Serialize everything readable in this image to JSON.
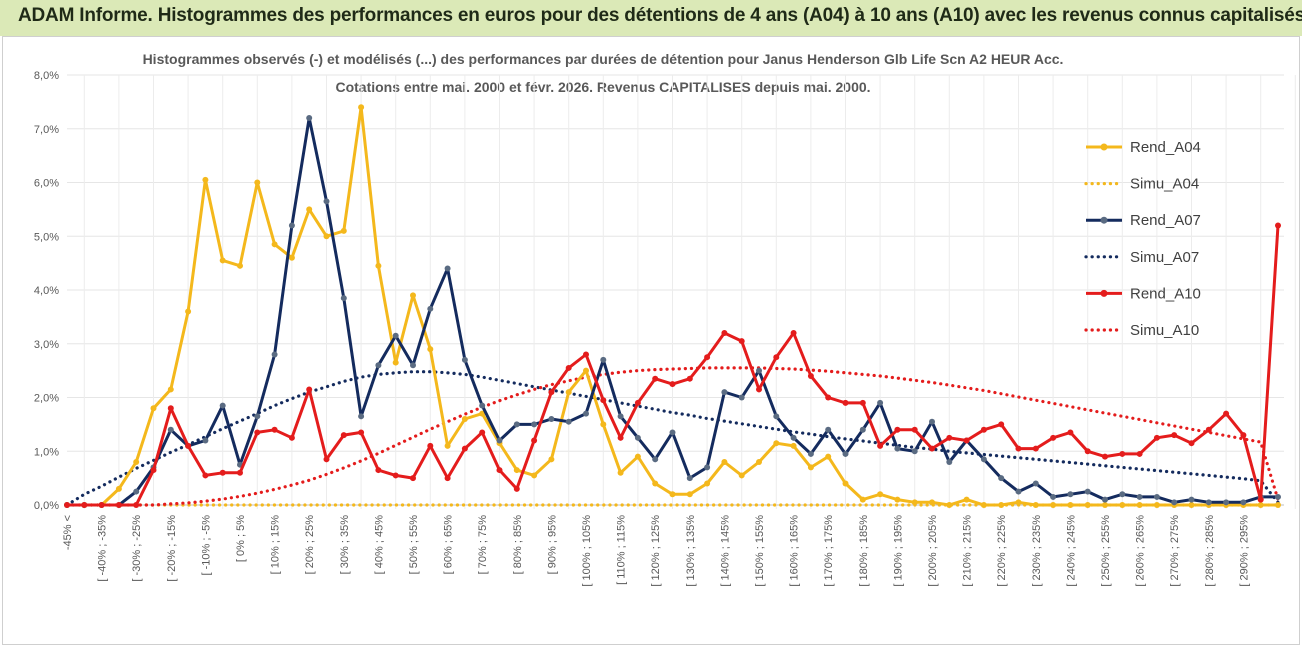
{
  "banner": {
    "title": "ADAM Informe. Histogrammes des performances en euros pour des détentions de 4 ans (A04) à 10 ans (A10) avec les revenus connus capitalisés"
  },
  "chart_data": {
    "type": "line",
    "title_line1": "Histogrammes observés (-) et modélisés (...) des performances par durées de détention pour Janus Henderson Glb Life Scn A2 HEUR Acc.",
    "title_line2": "Cotations entre mai. 2000 et févr. 2026. Revenus CAPITALISES depuis mai. 2000.",
    "ylim": [
      0,
      8
    ],
    "yticks": [
      "0,0%",
      "1,0%",
      "2,0%",
      "3,0%",
      "4,0%",
      "5,0%",
      "6,0%",
      "7,0%",
      "8,0%"
    ],
    "categories": [
      "-45% <",
      "[ -45% ; -40% [",
      "[ -40% ; -35% [",
      "[ -35% ; -30% [",
      "[ -30% ; -25% [",
      "[ -25% ; -20% [",
      "[ -20% ; -15% [",
      "[ -15% ; -10% [",
      "[ -10% ; -5% [",
      "[ -5% ; 0% [",
      "[ 0% ; 5% [",
      "[ 5% ; 10% [",
      "[ 10% ; 15% [",
      "[ 15% ; 20% [",
      "[ 20% ; 25% [",
      "[ 25% ; 30% [",
      "[ 30% ; 35% [",
      "[ 35% ; 40% [",
      "[ 40% ; 45% [",
      "[ 45% ; 50% [",
      "[ 50% ; 55% [",
      "[ 55% ; 60% [",
      "[ 60% ; 65% [",
      "[ 65% ; 70% [",
      "[ 70% ; 75% [",
      "[ 75% ; 80% [",
      "[ 80% ; 85% [",
      "[ 85% ; 90% [",
      "[ 90% ; 95% [",
      "[ 95% ; 100% [",
      "[ 100% ; 105% [",
      "[ 105% ; 110% [",
      "[ 110% ; 115% [",
      "[ 115% ; 120% [",
      "[ 120% ; 125% [",
      "[ 125% ; 130% [",
      "[ 130% ; 135% [",
      "[ 135% ; 140% [",
      "[ 140% ; 145% [",
      "[ 145% ; 150% [",
      "[ 150% ; 155% [",
      "[ 155% ; 160% [",
      "[ 160% ; 165% [",
      "[ 165% ; 170% [",
      "[ 170% ; 175% [",
      "[ 175% ; 180% [",
      "[ 180% ; 185% [",
      "[ 185% ; 190% [",
      "[ 190% ; 195% [",
      "[ 195% ; 200% [",
      "[ 200% ; 205% [",
      "[ 205% ; 210% [",
      "[ 210% ; 215% [",
      "[ 215% ; 220% [",
      "[ 220% ; 225% [",
      "[ 225% ; 230% [",
      "[ 230% ; 235% [",
      "[ 235% ; 240% [",
      "[ 240% ; 245% [",
      "[ 245% ; 250% [",
      "[ 250% ; 255% [",
      "[ 255% ; 260% [",
      "[ 260% ; 265% [",
      "[ 265% ; 270% [",
      "[ 270% ; 275% [",
      "[ 275% ; 280% [",
      "[ 280% ; 285% [",
      "[ 285% ; 290% [",
      "[ 290% ; 295% [",
      "[ 295% ; 300% [",
      "> 300%"
    ],
    "xtick_labels": [
      {
        "index": 0,
        "text": "-45% <"
      },
      {
        "index": 2,
        "text": "[ -40% ; -35%"
      },
      {
        "index": 4,
        "text": "[ -30% ; -25%"
      },
      {
        "index": 6,
        "text": "[ -20% ; -15%"
      },
      {
        "index": 8,
        "text": "[ -10% ; -5%"
      },
      {
        "index": 10,
        "text": "[ 0% ; 5%"
      },
      {
        "index": 12,
        "text": "[ 10% ; 15%"
      },
      {
        "index": 14,
        "text": "[ 20% ; 25%"
      },
      {
        "index": 16,
        "text": "[ 30% ; 35%"
      },
      {
        "index": 18,
        "text": "[ 40% ; 45%"
      },
      {
        "index": 20,
        "text": "[ 50% ; 55%"
      },
      {
        "index": 22,
        "text": "[ 60% ; 65%"
      },
      {
        "index": 24,
        "text": "[ 70% ; 75%"
      },
      {
        "index": 26,
        "text": "[ 80% ; 85%"
      },
      {
        "index": 28,
        "text": "[ 90% ; 95%"
      },
      {
        "index": 30,
        "text": "[ 100% ; 105%"
      },
      {
        "index": 32,
        "text": "[ 110% ; 115%"
      },
      {
        "index": 34,
        "text": "[ 120% ; 125%"
      },
      {
        "index": 36,
        "text": "[ 130% ; 135%"
      },
      {
        "index": 38,
        "text": "[ 140% ; 145%"
      },
      {
        "index": 40,
        "text": "[ 150% ; 155%"
      },
      {
        "index": 42,
        "text": "[ 160% ; 165%"
      },
      {
        "index": 44,
        "text": "[ 170% ; 175%"
      },
      {
        "index": 46,
        "text": "[ 180% ; 185%"
      },
      {
        "index": 48,
        "text": "[ 190% ; 195%"
      },
      {
        "index": 50,
        "text": "[ 200% ; 205%"
      },
      {
        "index": 52,
        "text": "[ 210% ; 215%"
      },
      {
        "index": 54,
        "text": "[ 220% ; 225%"
      },
      {
        "index": 56,
        "text": "[ 230% ; 235%"
      },
      {
        "index": 58,
        "text": "[ 240% ; 245%"
      },
      {
        "index": 60,
        "text": "[ 250% ; 255%"
      },
      {
        "index": 62,
        "text": "[ 260% ; 265%"
      },
      {
        "index": 64,
        "text": "[ 270% ; 275%"
      },
      {
        "index": 66,
        "text": "[ 280% ; 285%"
      },
      {
        "index": 68,
        "text": "[ 290% ; 295%"
      }
    ],
    "series": [
      {
        "name": "Rend_A04",
        "color": "#f4b81c",
        "style": "solid",
        "marker": true,
        "values": [
          0,
          0,
          0,
          0.3,
          0.8,
          1.8,
          2.15,
          3.6,
          6.05,
          4.55,
          4.45,
          6.0,
          4.85,
          4.6,
          5.5,
          5.0,
          5.1,
          7.4,
          4.45,
          2.65,
          3.9,
          2.9,
          1.1,
          1.6,
          1.7,
          1.15,
          0.65,
          0.55,
          0.85,
          2.1,
          2.5,
          1.5,
          0.6,
          0.9,
          0.4,
          0.2,
          0.2,
          0.4,
          0.8,
          0.55,
          0.8,
          1.15,
          1.1,
          0.7,
          0.9,
          0.4,
          0.1,
          0.2,
          0.1,
          0.05,
          0.05,
          0,
          0.1,
          0,
          0,
          0.05,
          0,
          0,
          0,
          0,
          0,
          0,
          0,
          0,
          0,
          0,
          0,
          0,
          0,
          0,
          0
        ]
      },
      {
        "name": "Simu_A04",
        "color": "#f4b81c",
        "style": "dotted",
        "marker": false,
        "values": [
          0,
          0,
          0,
          0,
          0,
          0,
          0,
          0,
          0,
          0,
          0,
          0,
          0,
          0,
          0,
          0,
          0,
          0,
          0,
          0,
          0,
          0,
          0,
          0,
          0,
          0,
          0,
          0,
          0,
          0,
          0,
          0,
          0,
          0,
          0,
          0,
          0,
          0,
          0,
          0,
          0,
          0,
          0,
          0,
          0,
          0,
          0,
          0,
          0,
          0,
          0,
          0,
          0,
          0,
          0,
          0,
          0,
          0,
          0,
          0,
          0,
          0,
          0,
          0,
          0,
          0,
          0,
          0,
          0,
          0,
          0
        ]
      },
      {
        "name": "Rend_A07",
        "color": "#142b5e",
        "style": "solid",
        "marker": true,
        "values": [
          0,
          0,
          0,
          0,
          0.25,
          0.7,
          1.4,
          1.1,
          1.2,
          1.85,
          0.75,
          1.65,
          2.8,
          5.2,
          7.2,
          5.65,
          3.85,
          1.65,
          2.6,
          3.15,
          2.6,
          3.65,
          4.4,
          2.7,
          1.85,
          1.2,
          1.5,
          1.5,
          1.6,
          1.55,
          1.7,
          2.7,
          1.65,
          1.25,
          0.85,
          1.35,
          0.5,
          0.7,
          2.1,
          2.0,
          2.5,
          1.65,
          1.25,
          0.95,
          1.4,
          0.95,
          1.4,
          1.9,
          1.05,
          1.0,
          1.55,
          0.8,
          1.2,
          0.85,
          0.5,
          0.25,
          0.4,
          0.15,
          0.2,
          0.25,
          0.1,
          0.2,
          0.15,
          0.15,
          0.05,
          0.1,
          0.05,
          0.05,
          0.05,
          0.15,
          0.15
        ]
      },
      {
        "name": "Simu_A07",
        "color": "#142b5e",
        "style": "dotted",
        "marker": false,
        "values": [
          0,
          0.2,
          0.35,
          0.52,
          0.68,
          0.83,
          0.98,
          1.12,
          1.27,
          1.42,
          1.56,
          1.7,
          1.85,
          1.98,
          2.1,
          2.2,
          2.3,
          2.38,
          2.43,
          2.46,
          2.48,
          2.48,
          2.46,
          2.43,
          2.38,
          2.32,
          2.26,
          2.2,
          2.14,
          2.08,
          2.02,
          1.96,
          1.9,
          1.84,
          1.78,
          1.72,
          1.67,
          1.61,
          1.56,
          1.51,
          1.46,
          1.41,
          1.36,
          1.32,
          1.27,
          1.23,
          1.19,
          1.15,
          1.11,
          1.07,
          1.04,
          1.0,
          0.97,
          0.94,
          0.91,
          0.88,
          0.85,
          0.82,
          0.79,
          0.76,
          0.73,
          0.7,
          0.67,
          0.64,
          0.61,
          0.58,
          0.55,
          0.52,
          0.49,
          0.45,
          0.05
        ]
      },
      {
        "name": "Rend_A10",
        "color": "#e41c1c",
        "style": "solid",
        "marker": true,
        "values": [
          0,
          0,
          0,
          0,
          0,
          0.65,
          1.8,
          1.1,
          0.55,
          0.6,
          0.6,
          1.35,
          1.4,
          1.25,
          2.15,
          0.85,
          1.3,
          1.35,
          0.65,
          0.55,
          0.5,
          1.1,
          0.5,
          1.05,
          1.35,
          0.65,
          0.3,
          1.2,
          2.1,
          2.55,
          2.8,
          1.95,
          1.25,
          1.9,
          2.35,
          2.25,
          2.35,
          2.75,
          3.2,
          3.05,
          2.15,
          2.75,
          3.2,
          2.4,
          2.0,
          1.9,
          1.9,
          1.1,
          1.4,
          1.4,
          1.05,
          1.25,
          1.2,
          1.4,
          1.5,
          1.05,
          1.05,
          1.25,
          1.35,
          1.0,
          0.9,
          0.95,
          0.95,
          1.25,
          1.3,
          1.15,
          1.4,
          1.7,
          1.3,
          0.1,
          5.2
        ]
      },
      {
        "name": "Simu_A10",
        "color": "#e41c1c",
        "style": "dotted",
        "marker": false,
        "values": [
          0,
          0,
          0,
          0,
          0,
          0,
          0.02,
          0.04,
          0.07,
          0.11,
          0.16,
          0.22,
          0.29,
          0.37,
          0.46,
          0.57,
          0.69,
          0.82,
          0.96,
          1.11,
          1.26,
          1.41,
          1.55,
          1.69,
          1.82,
          1.94,
          2.05,
          2.15,
          2.24,
          2.31,
          2.38,
          2.43,
          2.47,
          2.5,
          2.52,
          2.53,
          2.54,
          2.55,
          2.55,
          2.55,
          2.55,
          2.54,
          2.53,
          2.51,
          2.49,
          2.46,
          2.43,
          2.4,
          2.36,
          2.32,
          2.28,
          2.23,
          2.18,
          2.13,
          2.07,
          2.01,
          1.95,
          1.89,
          1.83,
          1.77,
          1.71,
          1.65,
          1.59,
          1.53,
          1.47,
          1.41,
          1.35,
          1.29,
          1.23,
          1.17,
          0.1
        ]
      }
    ],
    "legend_position": "right"
  }
}
